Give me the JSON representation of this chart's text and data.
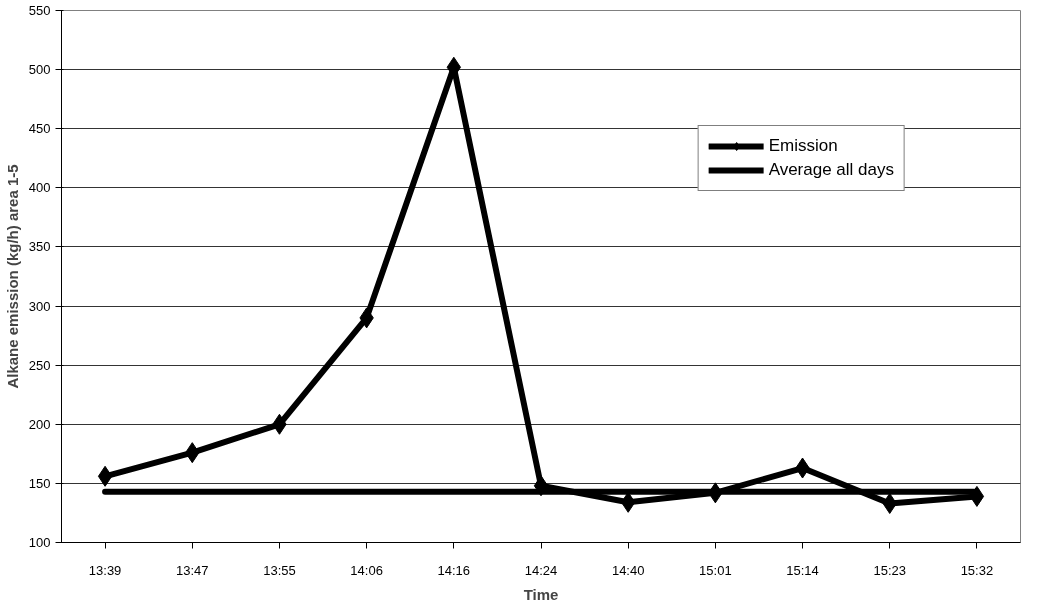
{
  "chart_data": {
    "type": "line",
    "xlabel": "Time",
    "ylabel": "Alkane emission (kg/h) area 1-5",
    "categories": [
      "13:39",
      "13:47",
      "13:55",
      "14:06",
      "14:16",
      "14:24",
      "14:40",
      "15:01",
      "15:14",
      "15:23",
      "15:32"
    ],
    "series": [
      {
        "name": "Emission",
        "color": "#000000",
        "marker": "diamond",
        "values": [
          156,
          176,
          200,
          290,
          502,
          148,
          134,
          142,
          163,
          133,
          139
        ]
      },
      {
        "name": "Average all days",
        "color": "#000000",
        "marker": "none",
        "values": [
          143,
          143,
          143,
          143,
          143,
          143,
          143,
          143,
          143,
          143,
          143
        ]
      }
    ],
    "ylim": [
      100,
      550
    ],
    "yticks": [
      100,
      150,
      200,
      250,
      300,
      350,
      400,
      450,
      500,
      550
    ],
    "grid": "y",
    "legend": "top right",
    "line_style": "solid"
  }
}
